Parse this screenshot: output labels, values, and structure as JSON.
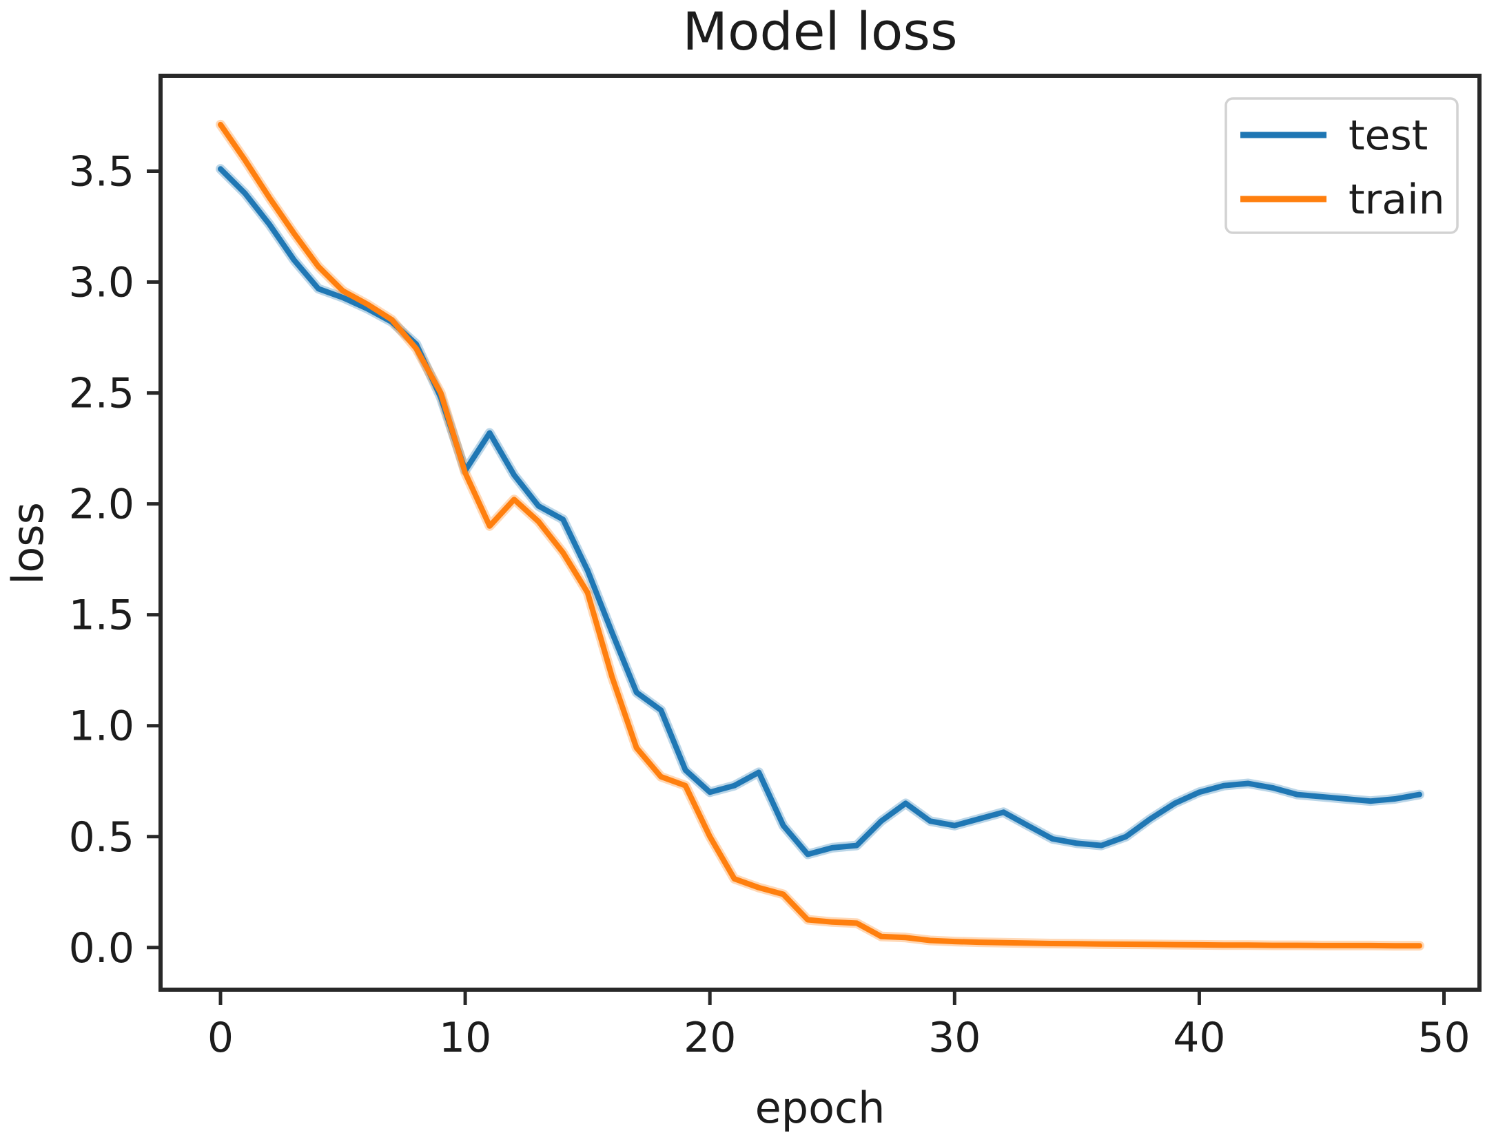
{
  "chart_data": {
    "type": "line",
    "title": "Model loss",
    "xlabel": "epoch",
    "ylabel": "loss",
    "xlim": [
      -2.45,
      51.45
    ],
    "ylim": [
      -0.19,
      3.93
    ],
    "xticks": [
      "0",
      "10",
      "20",
      "30",
      "40",
      "50"
    ],
    "yticks": [
      "0.0",
      "0.5",
      "1.0",
      "1.5",
      "2.0",
      "2.5",
      "3.0",
      "3.5"
    ],
    "grid": false,
    "legend": {
      "position": "upper right",
      "entries": [
        "test",
        "train"
      ]
    },
    "x": [
      0,
      1,
      2,
      3,
      4,
      5,
      6,
      7,
      8,
      9,
      10,
      11,
      12,
      13,
      14,
      15,
      16,
      17,
      18,
      19,
      20,
      21,
      22,
      23,
      24,
      25,
      26,
      27,
      28,
      29,
      30,
      31,
      32,
      33,
      34,
      35,
      36,
      37,
      38,
      39,
      40,
      41,
      42,
      43,
      44,
      45,
      46,
      47,
      48,
      49
    ],
    "series": [
      {
        "name": "test",
        "color": "#1f77b4",
        "values": [
          3.51,
          3.4,
          3.26,
          3.1,
          2.97,
          2.93,
          2.88,
          2.82,
          2.72,
          2.48,
          2.15,
          2.32,
          2.13,
          1.99,
          1.93,
          1.7,
          1.42,
          1.15,
          1.07,
          0.8,
          0.7,
          0.73,
          0.79,
          0.55,
          0.42,
          0.45,
          0.46,
          0.57,
          0.65,
          0.57,
          0.55,
          0.58,
          0.61,
          0.55,
          0.49,
          0.47,
          0.46,
          0.5,
          0.58,
          0.65,
          0.7,
          0.73,
          0.74,
          0.72,
          0.69,
          0.68,
          0.67,
          0.66,
          0.67,
          0.69
        ]
      },
      {
        "name": "train",
        "color": "#ff7f0e",
        "values": [
          3.71,
          3.55,
          3.38,
          3.22,
          3.07,
          2.96,
          2.9,
          2.83,
          2.7,
          2.5,
          2.14,
          1.9,
          2.02,
          1.92,
          1.78,
          1.6,
          1.22,
          0.9,
          0.77,
          0.73,
          0.5,
          0.31,
          0.27,
          0.24,
          0.125,
          0.115,
          0.11,
          0.05,
          0.045,
          0.032,
          0.027,
          0.024,
          0.022,
          0.02,
          0.018,
          0.017,
          0.016,
          0.015,
          0.014,
          0.013,
          0.012,
          0.011,
          0.011,
          0.01,
          0.01,
          0.009,
          0.009,
          0.009,
          0.008,
          0.008
        ]
      }
    ]
  }
}
